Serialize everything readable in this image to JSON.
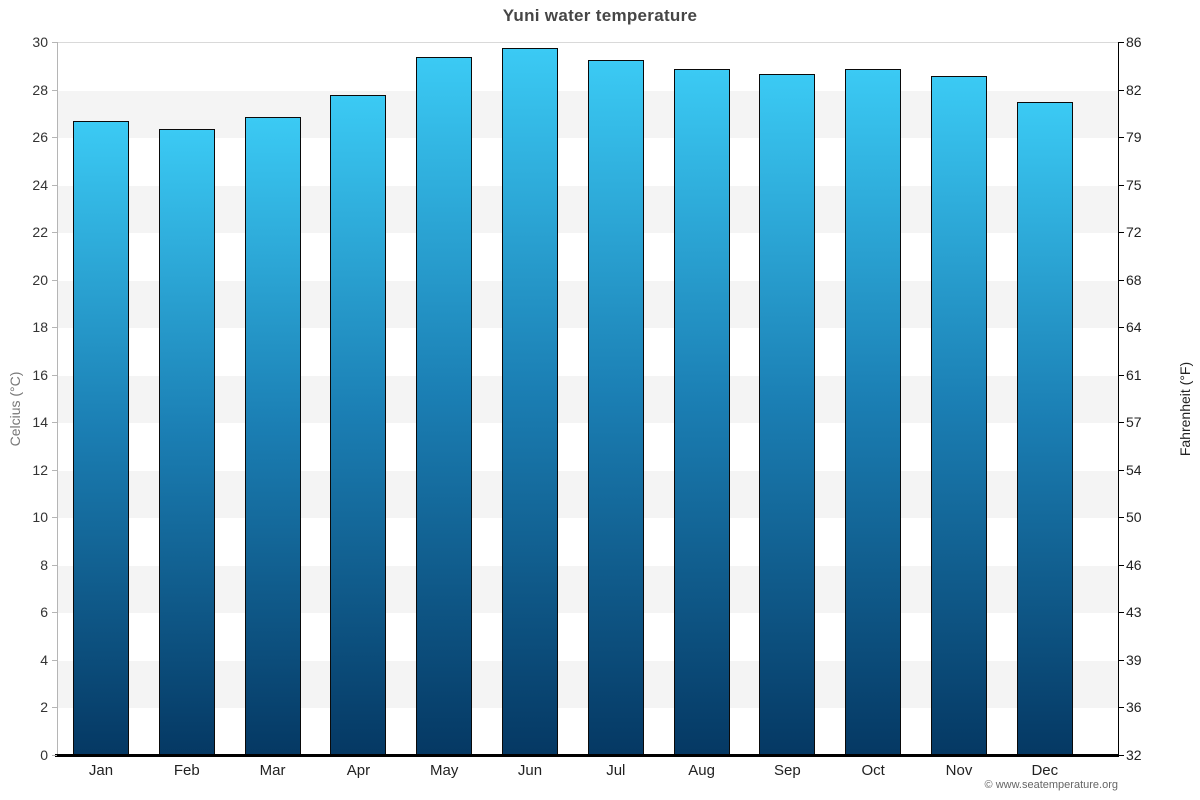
{
  "footer": {
    "credit": "© www.seatemperature.org"
  },
  "chart_data": {
    "type": "bar",
    "title": "Yuni water temperature",
    "categories": [
      "Jan",
      "Feb",
      "Mar",
      "Apr",
      "May",
      "Jun",
      "Jul",
      "Aug",
      "Sep",
      "Oct",
      "Nov",
      "Dec"
    ],
    "values": [
      26.7,
      26.4,
      26.9,
      27.8,
      29.4,
      29.8,
      29.3,
      28.9,
      28.7,
      28.9,
      28.6,
      27.5
    ],
    "unit": "°C",
    "ylabel_left": "Celcius (°C)",
    "ylabel_right": "Fahrenheit (°F)",
    "yticks_left": [
      30,
      28,
      26,
      24,
      22,
      20,
      18,
      16,
      14,
      12,
      10,
      8,
      6,
      4,
      2,
      0
    ],
    "yticks_right": [
      86,
      82,
      79,
      75,
      72,
      68,
      64,
      61,
      57,
      54,
      50,
      46,
      43,
      39,
      36,
      32
    ],
    "ylim": [
      0,
      30
    ],
    "legend": false,
    "grid_bands": true,
    "colors": {
      "bar_gradient_top": "#3bcaf4",
      "bar_gradient_mid": "#1b7fb4",
      "bar_gradient_bottom": "#053863",
      "bar_border": "#0a0a0a",
      "band_fill": "#f4f4f4",
      "title_text": "#464646"
    }
  }
}
